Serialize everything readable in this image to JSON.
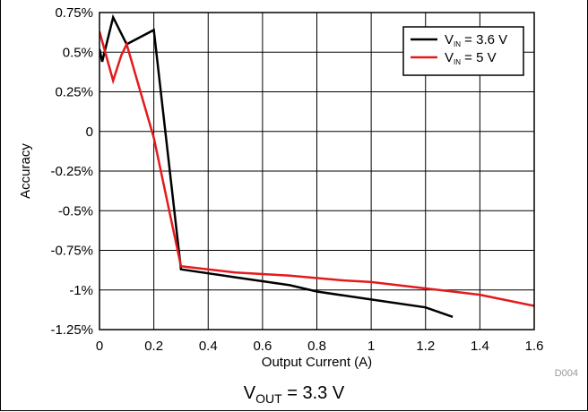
{
  "chart_data": {
    "type": "line",
    "title": "",
    "xlabel": "Output Current (A)",
    "ylabel": "Accuracy",
    "xlim": [
      0,
      1.6
    ],
    "ylim": [
      -1.25,
      0.75
    ],
    "x_ticks": [
      0,
      0.2,
      0.4,
      0.6,
      0.8,
      1.0,
      1.2,
      1.4,
      1.6
    ],
    "x_tick_labels": [
      "0",
      "0.2",
      "0.4",
      "0.6",
      "0.8",
      "1",
      "1.2",
      "1.4",
      "1.6"
    ],
    "y_ticks": [
      0.75,
      0.5,
      0.25,
      0,
      -0.25,
      -0.5,
      -0.75,
      -1.0,
      -1.25
    ],
    "y_tick_labels": [
      "0.75%",
      "0.5%",
      "0.25%",
      "0",
      "-0.25%",
      "-0.5%",
      "-0.75%",
      "-1%",
      "-1.25%"
    ],
    "grid": true,
    "legend_position": "top-right",
    "series": [
      {
        "name": "V",
        "name_sub": "IN",
        "name_suffix": " = 3.6 V",
        "color": "#000000",
        "x": [
          0,
          0.01,
          0.05,
          0.1,
          0.2,
          0.3,
          0.5,
          0.7,
          0.8,
          1.0,
          1.2,
          1.3
        ],
        "y": [
          0.52,
          0.44,
          0.72,
          0.55,
          0.64,
          -0.87,
          -0.92,
          -0.97,
          -1.01,
          -1.06,
          -1.11,
          -1.17
        ]
      },
      {
        "name": "V",
        "name_sub": "IN",
        "name_suffix": " = 5 V",
        "color": "#e31a1c",
        "x": [
          0,
          0.05,
          0.08,
          0.1,
          0.2,
          0.3,
          0.5,
          0.7,
          0.9,
          1.0,
          1.2,
          1.4,
          1.6
        ],
        "y": [
          0.63,
          0.32,
          0.48,
          0.55,
          -0.04,
          -0.85,
          -0.89,
          -0.91,
          -0.94,
          -0.95,
          -0.99,
          -1.03,
          -1.1
        ]
      }
    ]
  },
  "caption": {
    "main": "V",
    "sub": "OUT",
    "suffix": " = 3.3 V"
  },
  "figure_code": "D004"
}
